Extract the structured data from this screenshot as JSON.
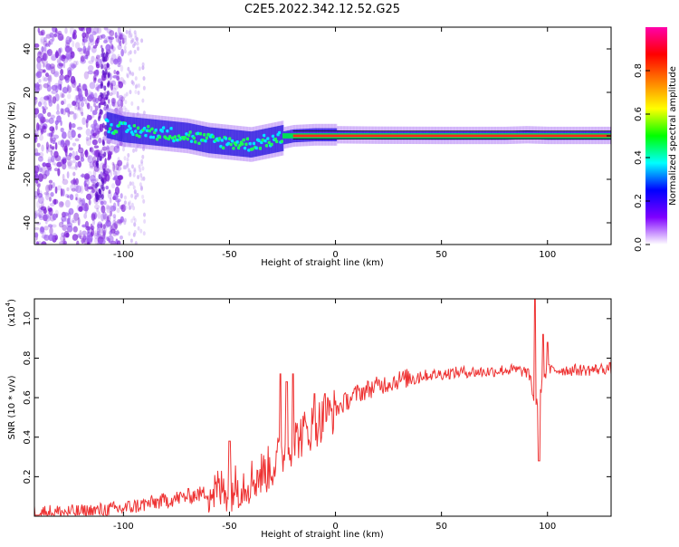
{
  "title": "C2E5.2022.342.12.52.G25",
  "chart_data": [
    {
      "type": "heatmap",
      "xlabel": "Height of straight line (km)",
      "ylabel": "Frequency (Hz)",
      "xlim": [
        -142,
        130
      ],
      "ylim": [
        -50,
        50
      ],
      "xticks": [
        -100,
        -50,
        0,
        50,
        100
      ],
      "xtick_labels": [
        "-100",
        "-50",
        "0",
        "50",
        "100"
      ],
      "yticks": [
        -40,
        -20,
        0,
        20,
        40
      ],
      "ytick_labels": [
        "-40",
        "-20",
        "0",
        "20",
        "40"
      ],
      "colorbar": {
        "label": "Normalized spectral amplitude",
        "range": [
          0,
          1
        ],
        "ticks": [
          0.0,
          0.2,
          0.4,
          0.6,
          0.8
        ],
        "tick_labels": [
          "0.0",
          "0.2",
          "0.4",
          "0.6",
          "0.8"
        ],
        "colormap": [
          "#ffffff",
          "#7f00ff",
          "#0000ff",
          "#00ffff",
          "#00ff00",
          "#ffff00",
          "#ff7f00",
          "#ff0000",
          "#ff00aa"
        ]
      },
      "signal_trace": {
        "x": [
          -108,
          -100,
          -90,
          -80,
          -70,
          -60,
          -50,
          -40,
          -30,
          -25,
          -20,
          -10,
          0,
          20,
          50,
          80,
          90,
          100,
          130
        ],
        "y": [
          5,
          3,
          2,
          1,
          0,
          -2,
          -3,
          -4,
          -2,
          -1,
          0,
          0.5,
          0.5,
          0.3,
          0.2,
          0.2,
          0.5,
          0.2,
          0.2
        ]
      },
      "grid": false
    },
    {
      "type": "line",
      "xlabel": "Height of straight line (km)",
      "ylabel": "SNR (10 * v/v)",
      "y_multiplier_label": "(x10",
      "y_multiplier_exp": "4",
      "y_multiplier_close": ")",
      "xlim": [
        -142,
        130
      ],
      "ylim": [
        0,
        1.1
      ],
      "xticks": [
        -100,
        -50,
        0,
        50,
        100
      ],
      "xtick_labels": [
        "-100",
        "-50",
        "0",
        "50",
        "100"
      ],
      "yticks": [
        0.2,
        0.4,
        0.6,
        0.8,
        1.0
      ],
      "ytick_labels": [
        "0.2",
        "0.4",
        "0.6",
        "0.8",
        "1.0"
      ],
      "color": "#ee3333",
      "series": [
        {
          "x": [
            -142,
            -120,
            -100,
            -90,
            -80,
            -70,
            -60,
            -50,
            -40,
            -30,
            -25,
            -20,
            -15,
            -10,
            -5,
            0,
            5,
            10,
            20,
            30,
            40,
            50,
            60,
            70,
            80,
            85,
            90,
            92,
            94,
            96,
            98,
            100,
            110,
            120,
            130
          ],
          "y": [
            0.02,
            0.02,
            0.04,
            0.06,
            0.08,
            0.1,
            0.12,
            0.14,
            0.18,
            0.25,
            0.32,
            0.38,
            0.42,
            0.46,
            0.5,
            0.54,
            0.58,
            0.62,
            0.66,
            0.69,
            0.71,
            0.72,
            0.73,
            0.73,
            0.74,
            0.74,
            0.73,
            0.7,
            0.55,
            0.6,
            0.7,
            0.74,
            0.74,
            0.74,
            0.75
          ]
        }
      ],
      "spikes": [
        {
          "x": -26,
          "peak": 0.72
        },
        {
          "x": -23,
          "peak": 0.68
        },
        {
          "x": -20,
          "peak": 0.72
        },
        {
          "x": -10,
          "peak": 0.62
        },
        {
          "x": -5,
          "peak": 0.62
        },
        {
          "x": -50,
          "peak": 0.38
        },
        {
          "x": 94,
          "peak": 1.1
        },
        {
          "x": 96,
          "peak": 0.28
        },
        {
          "x": 98,
          "peak": 0.92
        },
        {
          "x": 100,
          "peak": 0.88
        }
      ],
      "grid": false
    }
  ]
}
